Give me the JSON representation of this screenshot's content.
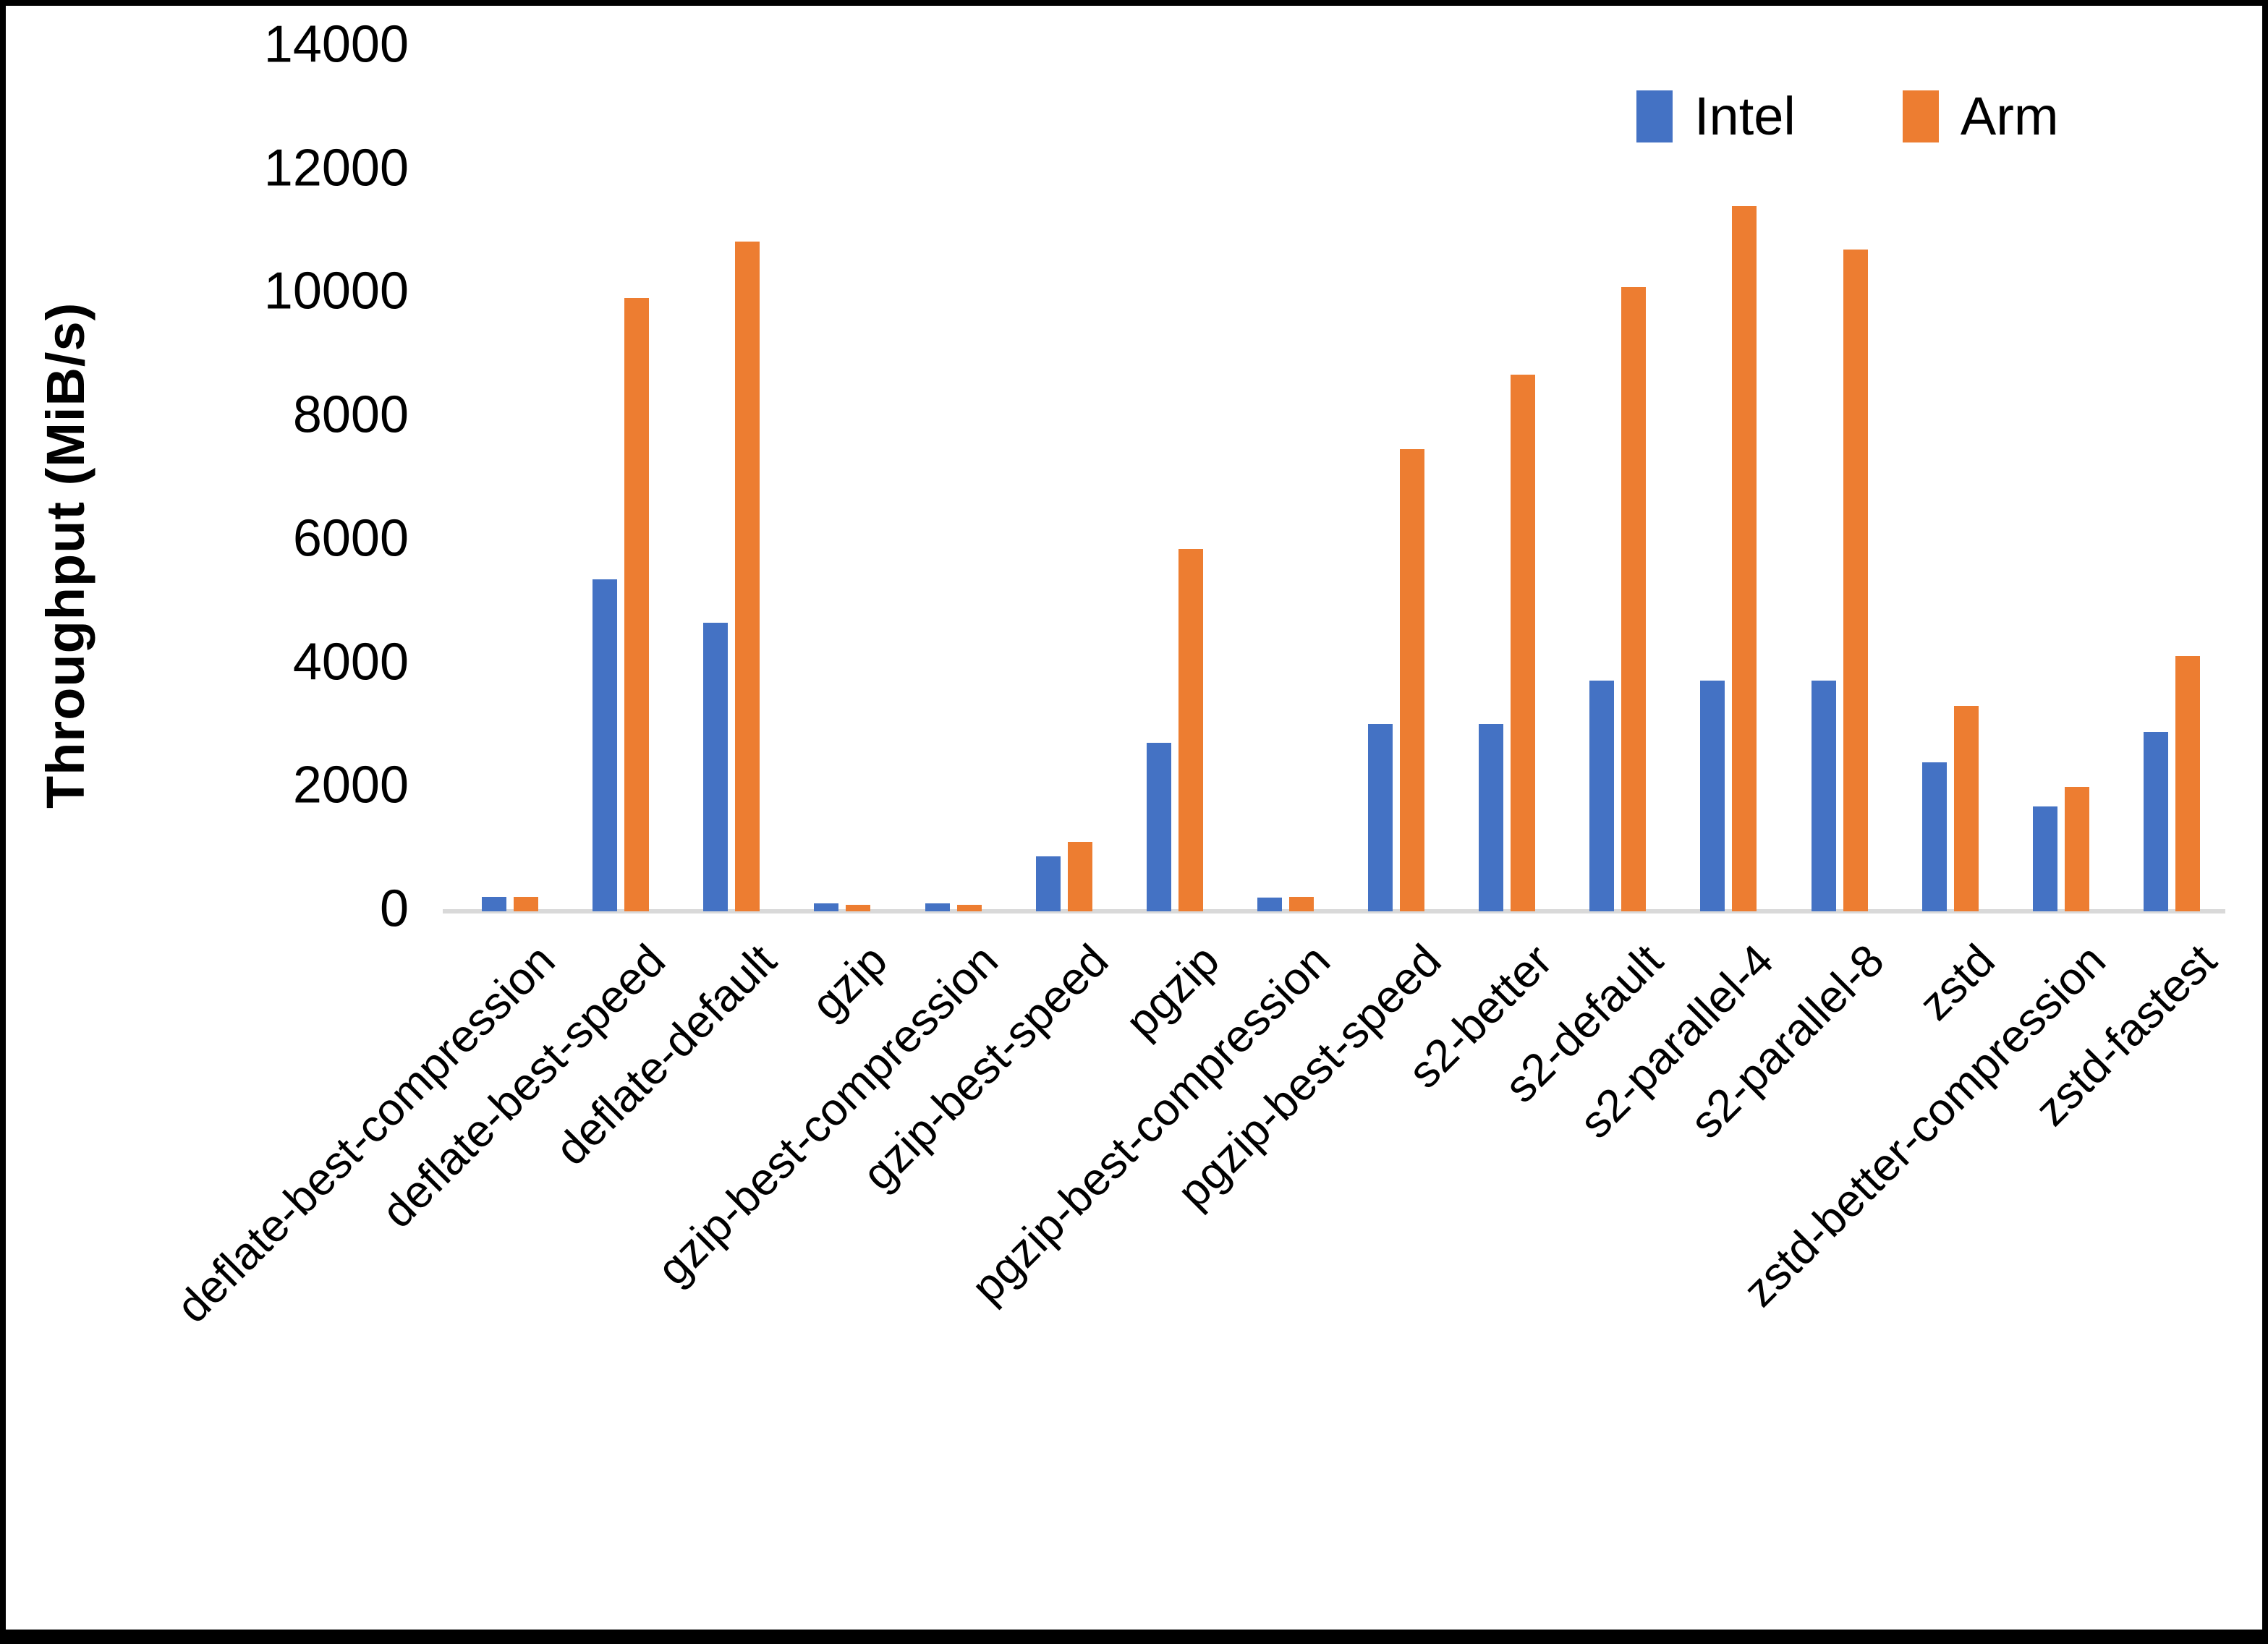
{
  "colors": {
    "intel": "#4472C4",
    "arm": "#ED7D31",
    "axis_line": "#D9D9D9",
    "frame": "#000000",
    "background": "#FFFFFF"
  },
  "chart_data": {
    "type": "bar",
    "title": "",
    "xlabel": "",
    "ylabel": "Throughput (MiB/s)",
    "ylim": [
      0,
      14000
    ],
    "yticks": [
      0,
      2000,
      4000,
      6000,
      8000,
      10000,
      12000,
      14000
    ],
    "grid": false,
    "legend_position": "top-right",
    "categories": [
      "deflate-best-compression",
      "deflate-best-speed",
      "deflate-default",
      "gzip",
      "gzip-best-compression",
      "gzip-best-speed",
      "pgzip",
      "pgzip-best-compression",
      "pgzip-best-speed",
      "s2-better",
      "s2-default",
      "s2-parallel-4",
      "s2-parallel-8",
      "zstd",
      "zstd-better-compression",
      "zstd-fastest"
    ],
    "series": [
      {
        "name": "Intel",
        "color": "#4472C4",
        "values": [
          240,
          5380,
          4670,
          125,
          125,
          890,
          2730,
          225,
          3030,
          3030,
          3740,
          3740,
          3740,
          2410,
          1700,
          2910
        ]
      },
      {
        "name": "Arm",
        "color": "#ED7D31",
        "values": [
          240,
          9930,
          10850,
          100,
          100,
          1120,
          5870,
          240,
          7490,
          8690,
          10110,
          11420,
          10720,
          3330,
          2010,
          4140
        ]
      }
    ]
  }
}
